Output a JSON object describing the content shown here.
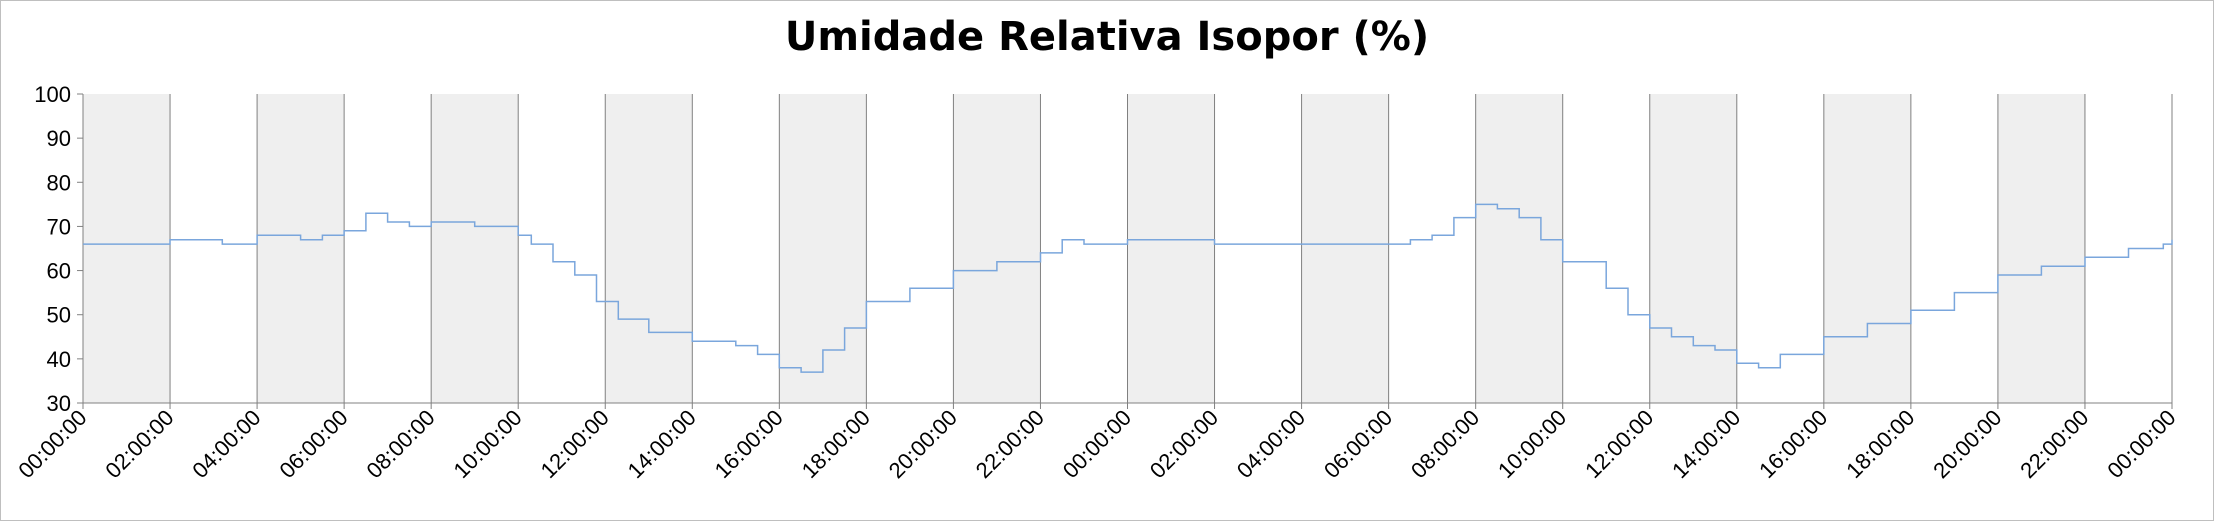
{
  "chart_data": {
    "type": "line",
    "title": "Umidade Relativa Isopor (%)",
    "xlabel": "",
    "ylabel": "",
    "ylim": [
      30,
      100
    ],
    "yticks": [
      "30",
      "40",
      "50",
      "60",
      "70",
      "80",
      "90",
      "100"
    ],
    "xticks": [
      "00:00:00",
      "02:00:00",
      "04:00:00",
      "06:00:00",
      "08:00:00",
      "10:00:00",
      "12:00:00",
      "14:00:00",
      "16:00:00",
      "18:00:00",
      "20:00:00",
      "22:00:00",
      "00:00:00",
      "02:00:00",
      "04:00:00",
      "06:00:00",
      "08:00:00",
      "10:00:00",
      "12:00:00",
      "14:00:00",
      "16:00:00",
      "18:00:00",
      "20:00:00",
      "22:00:00",
      "00:00:00"
    ],
    "x_unit": "hours (0-48, two consecutive days)",
    "grid": "vertical lines every 2 hours; alternating shaded 2-hour bands",
    "legend": "none",
    "colors": {
      "series": "#7aa6dc",
      "band": "#efefef",
      "gridline": "#808080",
      "axis": "#808080"
    },
    "series": [
      {
        "x": [
          0,
          2,
          3,
          3.2,
          4,
          5,
          5.5,
          6,
          6.5,
          7,
          7.5,
          8,
          9,
          10,
          10.3,
          10.8,
          11.3,
          11.8,
          12.3,
          13,
          14,
          15,
          15.5,
          16,
          16.5,
          17,
          17.5,
          18,
          19,
          20,
          21,
          22,
          22.5,
          23,
          24,
          25,
          26,
          27,
          28,
          29,
          30,
          30.5,
          31,
          31.5,
          32,
          32.5,
          33,
          33.5,
          34,
          35,
          35.5,
          36,
          36.5,
          37,
          37.5,
          38,
          38.5,
          39,
          40,
          41,
          42,
          43,
          44,
          45,
          46,
          47,
          47.8,
          48
        ],
        "values": [
          66,
          67,
          67,
          66,
          68,
          67,
          68,
          69,
          73,
          71,
          70,
          71,
          70,
          68,
          66,
          62,
          59,
          53,
          49,
          46,
          44,
          43,
          41,
          38,
          37,
          42,
          47,
          53,
          56,
          60,
          62,
          64,
          67,
          66,
          67,
          67,
          66,
          66,
          66,
          66,
          66,
          67,
          68,
          72,
          75,
          74,
          72,
          67,
          62,
          56,
          50,
          47,
          45,
          43,
          42,
          39,
          38,
          41,
          45,
          48,
          51,
          55,
          59,
          61,
          63,
          65,
          66,
          67
        ]
      }
    ]
  }
}
